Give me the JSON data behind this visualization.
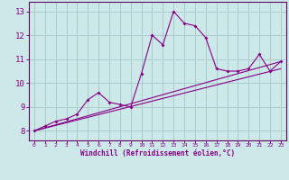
{
  "xlabel": "Windchill (Refroidissement éolien,°C)",
  "bg_color": "#cce8e8",
  "grid_color": "#aacccc",
  "line_color": "#880088",
  "spine_color": "#660066",
  "xlim": [
    -0.5,
    23.5
  ],
  "ylim": [
    7.6,
    13.4
  ],
  "xticks": [
    0,
    1,
    2,
    3,
    4,
    5,
    6,
    7,
    8,
    9,
    10,
    11,
    12,
    13,
    14,
    15,
    16,
    17,
    18,
    19,
    20,
    21,
    22,
    23
  ],
  "yticks": [
    8,
    9,
    10,
    11,
    12,
    13
  ],
  "main_line_x": [
    0,
    1,
    2,
    3,
    4,
    5,
    6,
    7,
    8,
    9,
    10,
    11,
    12,
    13,
    14,
    15,
    16,
    17,
    18,
    19,
    20,
    21,
    22,
    23
  ],
  "main_line_y": [
    8.0,
    8.2,
    8.4,
    8.5,
    8.7,
    9.3,
    9.6,
    9.2,
    9.1,
    9.0,
    10.4,
    12.0,
    11.6,
    13.0,
    12.5,
    12.4,
    11.9,
    10.6,
    10.5,
    10.5,
    10.6,
    11.2,
    10.5,
    10.9
  ],
  "line2_x": [
    0,
    23
  ],
  "line2_y": [
    8.0,
    10.9
  ],
  "line3_x": [
    0,
    23
  ],
  "line3_y": [
    8.0,
    10.6
  ]
}
